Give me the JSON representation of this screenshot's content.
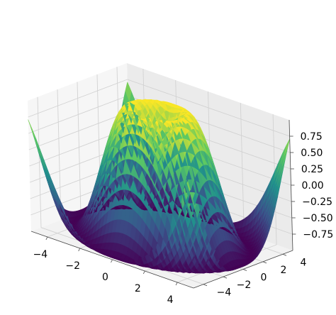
{
  "chart_data": {
    "type": "surface3d",
    "function": "sin(sqrt(x^2 + y^2))",
    "colormap": "viridis",
    "colormap_stops": [
      "#440154",
      "#3b528b",
      "#21918c",
      "#5ec962",
      "#fde725"
    ],
    "x_range": [
      -5,
      5
    ],
    "y_range": [
      -5,
      5
    ],
    "z_range": [
      -1,
      1
    ],
    "grid": true,
    "pane_color": "#f2f2f2",
    "title": "",
    "xlabel": "",
    "ylabel": "",
    "zlabel": "",
    "x_ticks": [
      {
        "value": -4,
        "label": "−4"
      },
      {
        "value": -2,
        "label": "−2"
      },
      {
        "value": 0,
        "label": "0"
      },
      {
        "value": 2,
        "label": "2"
      },
      {
        "value": 4,
        "label": "4"
      }
    ],
    "y_ticks": [
      {
        "value": -4,
        "label": "−4"
      },
      {
        "value": -2,
        "label": "−2"
      },
      {
        "value": 0,
        "label": "0"
      },
      {
        "value": 2,
        "label": "2"
      },
      {
        "value": 4,
        "label": "4"
      }
    ],
    "z_ticks": [
      {
        "value": -0.75,
        "label": "−0.75"
      },
      {
        "value": -0.5,
        "label": "−0.50"
      },
      {
        "value": -0.25,
        "label": "−0.25"
      },
      {
        "value": 0,
        "label": "0.00"
      },
      {
        "value": 0.25,
        "label": "0.25"
      },
      {
        "value": 0.5,
        "label": "0.50"
      },
      {
        "value": 0.75,
        "label": "0.75"
      }
    ]
  }
}
